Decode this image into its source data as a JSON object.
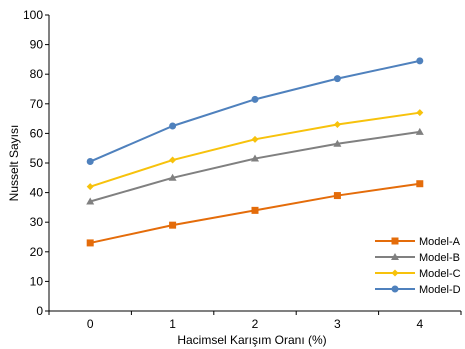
{
  "chart_data": {
    "type": "line",
    "title": "",
    "xlabel": "Hacimsel Karışım Oranı (%)",
    "ylabel": "Nusselt Sayısı",
    "x": [
      0,
      1,
      2,
      3,
      4
    ],
    "x_tick_labels": [
      "0",
      "1",
      "2",
      "3",
      "4"
    ],
    "y_tick_labels": [
      "0",
      "10",
      "20",
      "30",
      "40",
      "50",
      "60",
      "70",
      "80",
      "90",
      "100"
    ],
    "ylim": [
      0,
      100
    ],
    "grid": false,
    "legend_position": "bottom-right",
    "series": [
      {
        "name": "Model-A",
        "values": [
          23,
          29,
          34,
          39,
          43
        ],
        "color": "#E46C0A",
        "marker": "square"
      },
      {
        "name": "Model-B",
        "values": [
          37,
          45,
          51.5,
          56.5,
          60.5
        ],
        "color": "#808080",
        "marker": "triangle"
      },
      {
        "name": "Model-C",
        "values": [
          42,
          51,
          58,
          63,
          67
        ],
        "color": "#F7C20C",
        "marker": "diamond"
      },
      {
        "name": "Model-D",
        "values": [
          50.5,
          62.5,
          71.5,
          78.5,
          84.5
        ],
        "color": "#4F81BD",
        "marker": "circle"
      }
    ]
  }
}
